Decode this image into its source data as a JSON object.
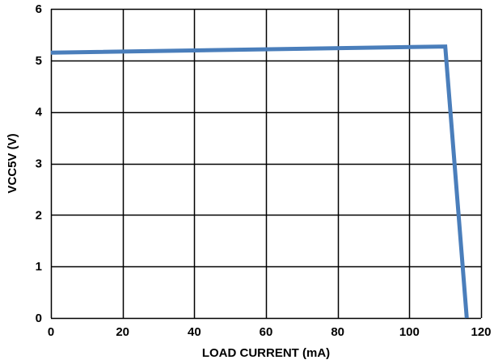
{
  "chart_data": {
    "type": "line",
    "title": "",
    "xlabel": "LOAD CURRENT (mA)",
    "ylabel": "VCC5V (V)",
    "xlim": [
      0,
      120
    ],
    "ylim": [
      0,
      6
    ],
    "x_ticks": [
      0,
      20,
      40,
      60,
      80,
      100,
      120
    ],
    "y_ticks": [
      0,
      1,
      2,
      3,
      4,
      5,
      6
    ],
    "x_tick_labels": [
      "0",
      "20",
      "40",
      "60",
      "80",
      "100",
      "120"
    ],
    "y_tick_labels": [
      "0",
      "1",
      "2",
      "3",
      "4",
      "5",
      "6"
    ],
    "grid": true,
    "legend": "none",
    "series": [
      {
        "color": "#4a7ebb",
        "x": [
          0,
          110,
          116
        ],
        "y": [
          5.15,
          5.27,
          0
        ]
      }
    ]
  }
}
